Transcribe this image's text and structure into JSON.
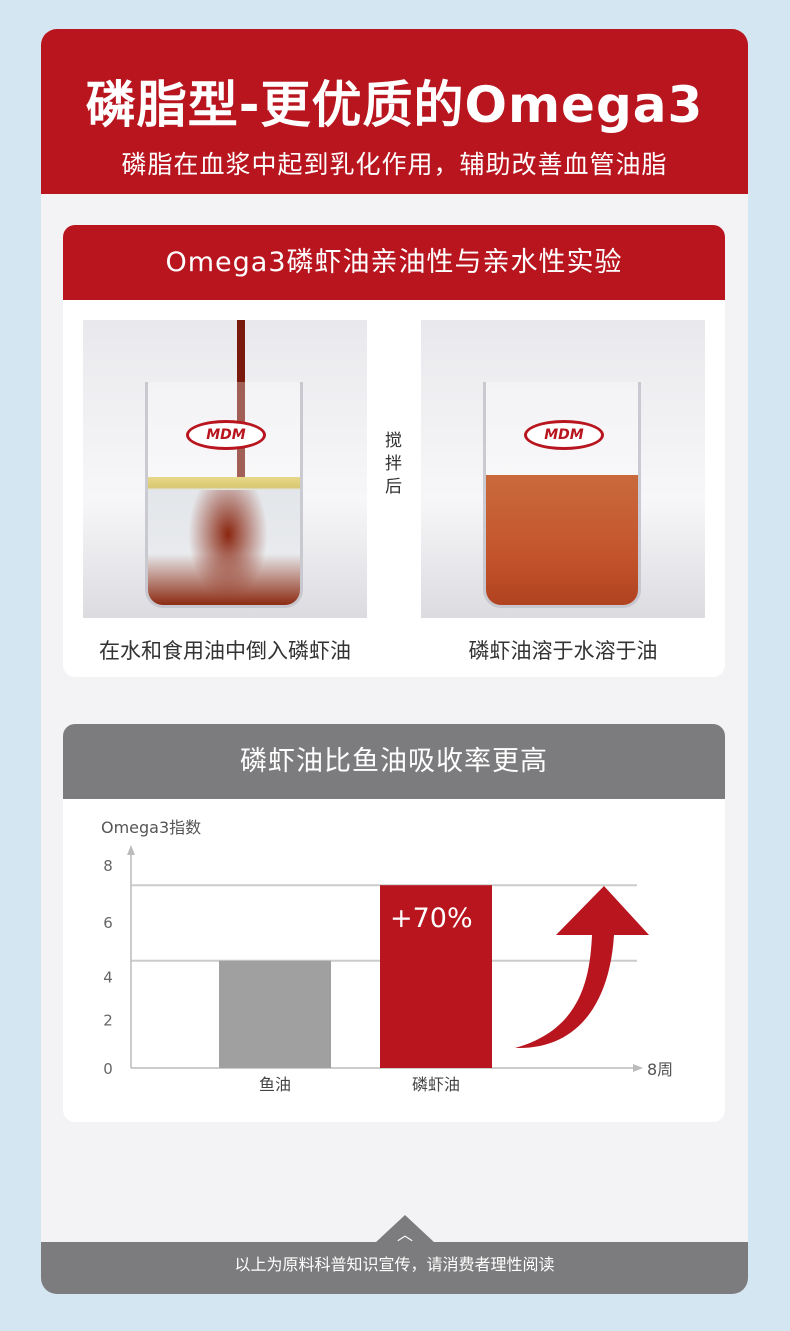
{
  "hero": {
    "title": "磷脂型-更优质的Omega3",
    "subtitle": "磷脂在血浆中起到乳化作用，辅助改善血管油脂"
  },
  "experiment": {
    "title": "Omega3磷虾油亲油性与亲水性实验",
    "stir_label": "搅拌后",
    "left_caption": "在水和食用油中倒入磷虾油",
    "right_caption": "磷虾油溶于水溶于油",
    "beaker_logo": "MDM"
  },
  "absorption": {
    "title": "磷虾油比鱼油吸收率更高"
  },
  "chart_data": {
    "type": "bar",
    "ylabel": "Omega3指数",
    "xlabel": "8周",
    "categories": [
      "鱼油",
      "磷虾油"
    ],
    "values": [
      4.4,
      7.5
    ],
    "yticks": [
      0,
      2,
      4,
      6,
      8
    ],
    "ylim": [
      0,
      8
    ],
    "annotation": "+70%",
    "colors": [
      "#a0a0a0",
      "#b8151f"
    ],
    "grid": true
  },
  "footer": {
    "text": "以上为原料科普知识宣传，请消费者理性阅读"
  },
  "colors": {
    "brand_red": "#b8151f",
    "gray": "#7c7b7d",
    "background": "#d3e6f1"
  }
}
